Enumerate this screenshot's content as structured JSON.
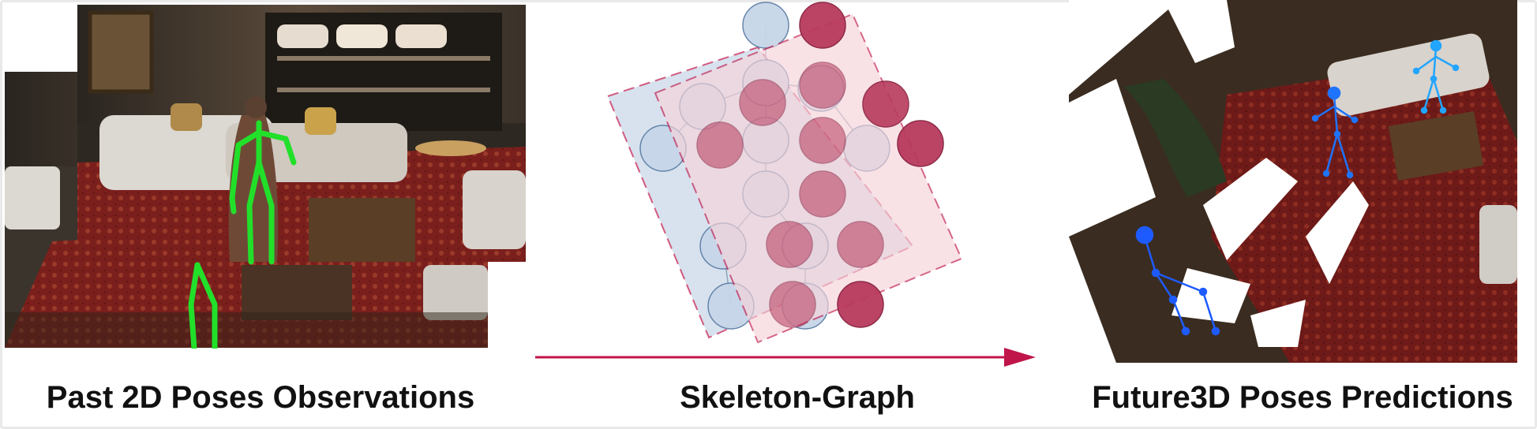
{
  "captions": {
    "past": "Past 2D Poses Observations",
    "graph": "Skeleton-Graph",
    "future": "Future3D Poses Predictions"
  },
  "colors": {
    "pose_green": "#22e02a",
    "arrow_red": "#c0154a",
    "pred_blue": "#1e5bff",
    "pred_cyan": "#22a5ff",
    "node_blue": "#c7d6e8",
    "node_red": "#b83a5c"
  },
  "icons": {
    "arrow": "right-arrow-icon"
  }
}
